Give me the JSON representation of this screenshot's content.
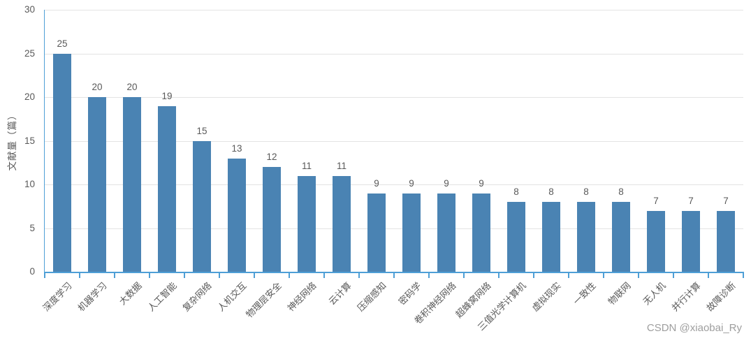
{
  "chart_data": {
    "type": "bar",
    "title": "",
    "xlabel": "",
    "ylabel": "文献量（篇）",
    "categories": [
      "深度学习",
      "机器学习",
      "大数据",
      "人工智能",
      "复杂网络",
      "人机交互",
      "物理层安全",
      "神经网络",
      "云计算",
      "压缩感知",
      "密码学",
      "卷积神经网络",
      "超蜂窝网络",
      "三值光学计算机",
      "虚拟现实",
      "一致性",
      "物联网",
      "无人机",
      "并行计算",
      "故障诊断"
    ],
    "values": [
      25,
      20,
      20,
      19,
      15,
      13,
      12,
      11,
      11,
      9,
      9,
      9,
      9,
      8,
      8,
      8,
      8,
      7,
      7,
      7
    ],
    "ylim": [
      0,
      30
    ],
    "yticks": [
      0,
      5,
      10,
      15,
      20,
      25,
      30
    ],
    "ytick_interval": 5,
    "grid": true,
    "legend": "none",
    "data_labels": true,
    "colors": {
      "bar": "#4A83B3",
      "axis": "#4E9FD6",
      "grid": "#E3E3E3",
      "text": "#595959",
      "watermark": "#9E9E9E",
      "background": "#FFFFFF"
    }
  },
  "watermark": "CSDN @xiaobai_Ry"
}
